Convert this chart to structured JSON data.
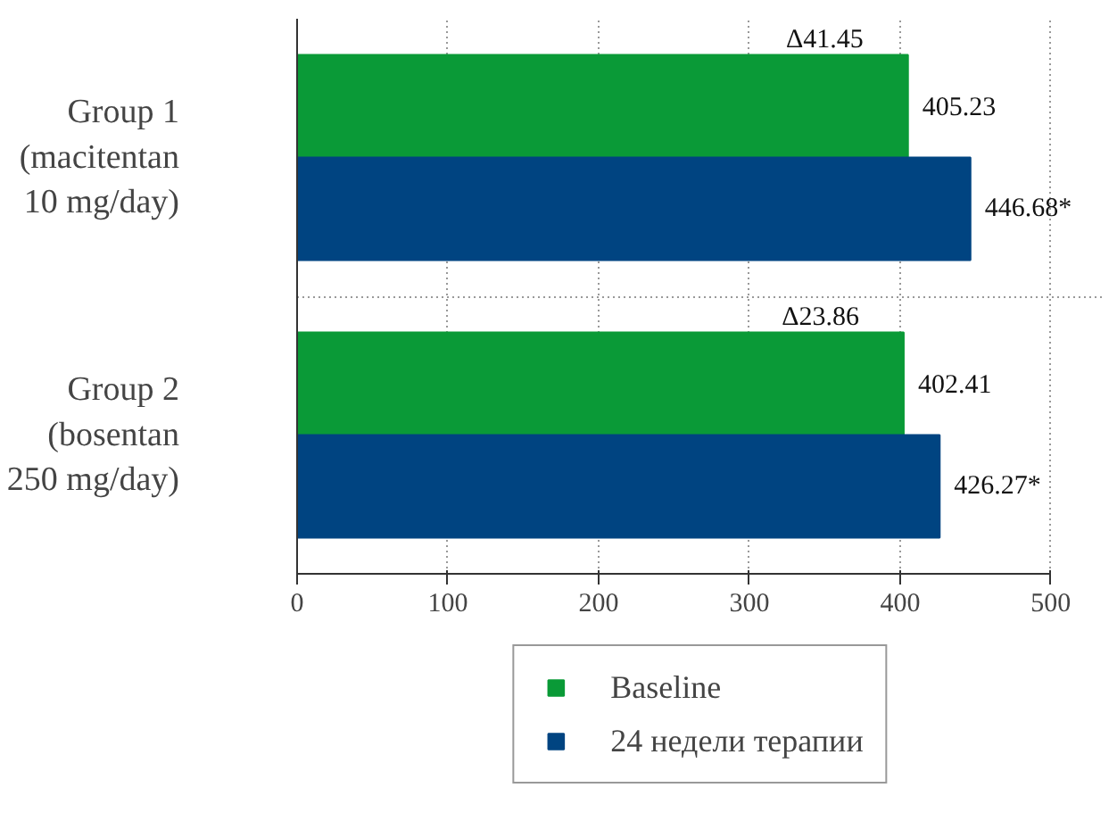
{
  "chart_data": {
    "type": "bar",
    "orientation": "horizontal",
    "categories": [
      "Group 1\n(macitentan\n10 mg/day)",
      "Group 2\n(bosentan\n250 mg/day)"
    ],
    "series": [
      {
        "name": "Baseline",
        "color": "#0a9a37",
        "values": [
          405.23,
          402.41
        ],
        "value_labels": [
          "405.23",
          "402.41"
        ]
      },
      {
        "name": "24 недели терапии",
        "color": "#004481",
        "values": [
          446.68,
          426.27
        ],
        "value_labels": [
          "446.68*",
          "426.27*"
        ]
      }
    ],
    "annotations": [
      "Δ41.45",
      "Δ23.86"
    ],
    "xlim": [
      0,
      500
    ],
    "xticks": [
      0,
      100,
      200,
      300,
      400,
      500
    ],
    "grid": true,
    "legend": "bottom"
  }
}
